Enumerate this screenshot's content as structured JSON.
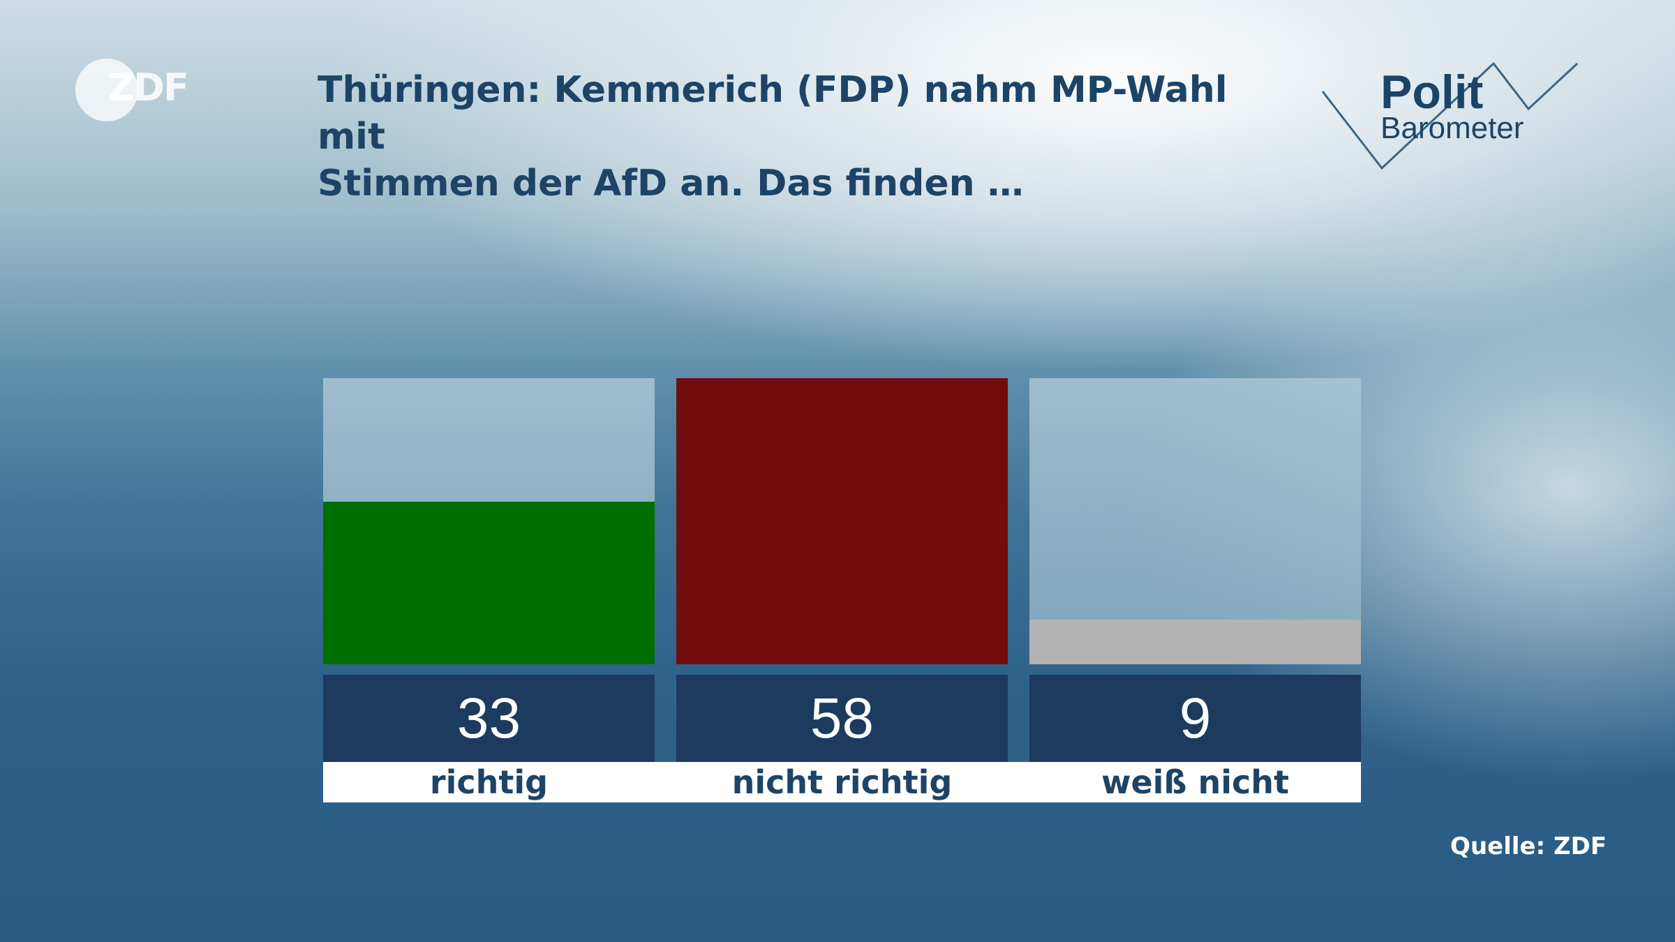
{
  "header": {
    "title": "Thüringen: Kemmerich (FDP) nahm MP-Wahl mit\nStimmen der AfD an. Das finden …",
    "broadcaster_logo": "ZDF",
    "program_logo_line1": "Polit",
    "program_logo_line2": "Barometer"
  },
  "footer": {
    "source": "Quelle: ZDF"
  },
  "colors": {
    "richtig": "#006e00",
    "nicht_richtig": "#720c0e",
    "weiss_nicht": "#b3b3b3",
    "value_box": "#1c3b5f",
    "title_text": "#1d4466"
  },
  "chart_data": {
    "type": "bar",
    "title": "Thüringen: Kemmerich (FDP) nahm MP-Wahl mit Stimmen der AfD an. Das finden …",
    "categories": [
      "richtig",
      "nicht richtig",
      "weiß nicht"
    ],
    "values": [
      33,
      58,
      9
    ],
    "value_labels": [
      "33",
      "58",
      "9"
    ],
    "ylim": [
      0,
      58
    ],
    "grid": false,
    "legend": "none",
    "source": "Quelle: ZDF"
  }
}
